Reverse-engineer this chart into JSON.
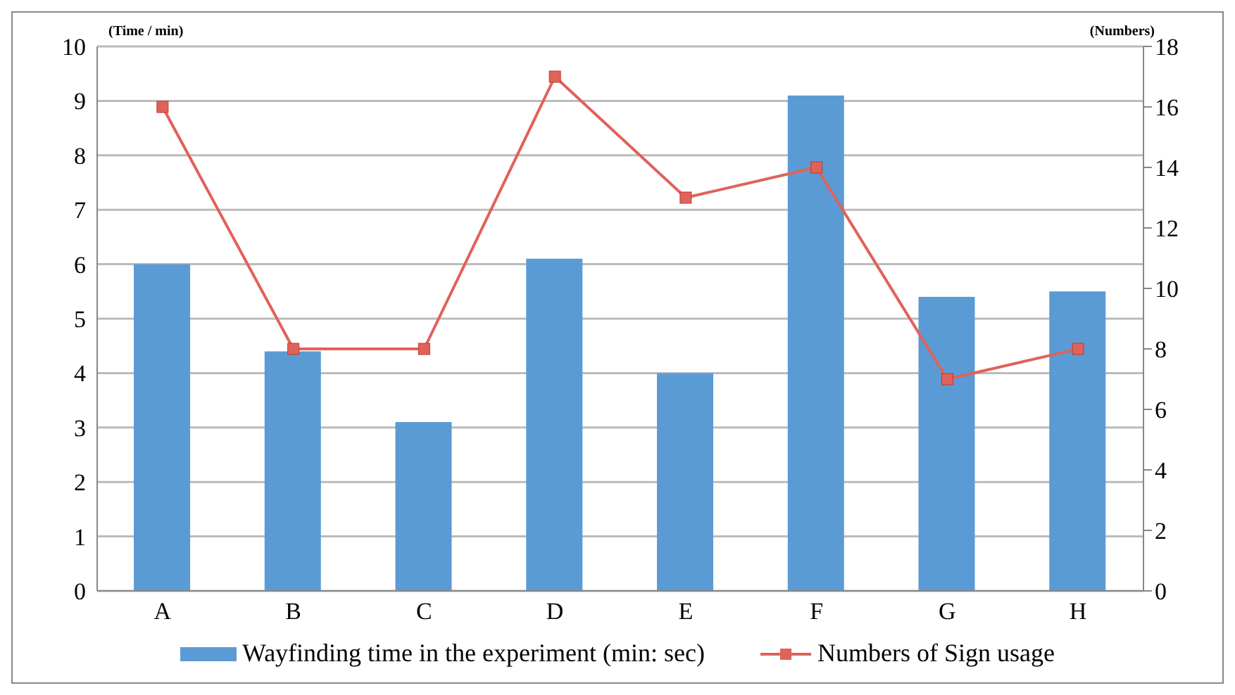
{
  "chart_data": {
    "type": "bar",
    "ylabel": "(Time / min)",
    "y2label": "(Numbers)",
    "categories": [
      "A",
      "B",
      "C",
      "D",
      "E",
      "F",
      "G",
      "H"
    ],
    "series": [
      {
        "name": "Wayfinding time in the experiment (min: sec)",
        "color": "#5b9bd5",
        "values": [
          6.0,
          4.4,
          3.1,
          6.1,
          4.0,
          9.1,
          5.4,
          5.5
        ]
      },
      {
        "name": "Numbers of Sign usage",
        "type": "line",
        "axis": "y2",
        "color": "#e0625a",
        "marker": "square",
        "values": [
          16,
          8,
          8,
          17,
          13,
          14,
          7,
          8
        ]
      }
    ],
    "ylim": [
      0,
      10
    ],
    "yticks": [
      0,
      1,
      2,
      3,
      4,
      5,
      6,
      7,
      8,
      9,
      10
    ],
    "y2lim": [
      0,
      18
    ],
    "y2ticks": [
      0,
      2,
      4,
      6,
      8,
      10,
      12,
      14,
      16,
      18
    ],
    "grid": "y",
    "legend": "bottom"
  }
}
